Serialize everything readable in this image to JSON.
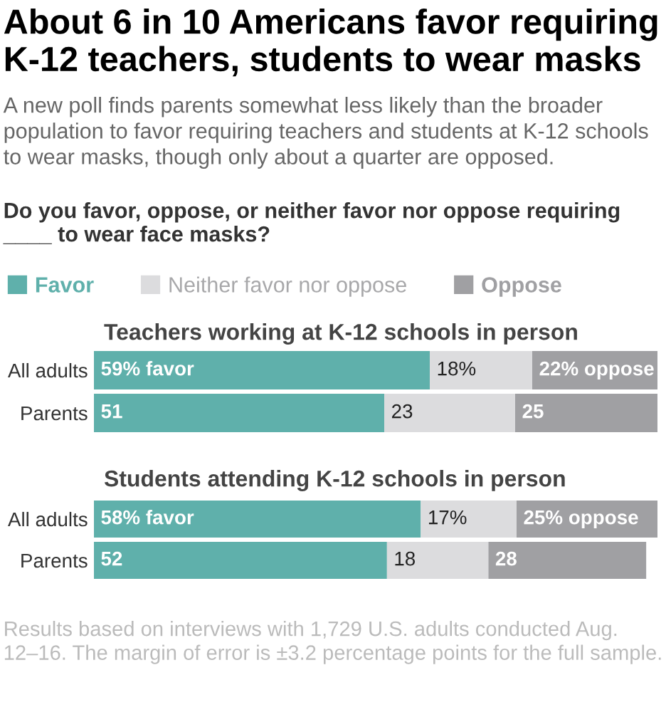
{
  "chart_data": [
    {
      "type": "bar",
      "orientation": "horizontal",
      "stacked": true,
      "title": "About 6 in 10 Americans favor requiring K-12 teachers, students to wear masks",
      "subtitle": "A new poll finds parents somewhat less likely than the broader population to favor requiring teachers and students at K-12 schools to wear masks, though only about a quarter are opposed.",
      "annotations": [
        "Do you favor, oppose, or neither favor nor oppose requiring ____ to wear face masks?",
        "Teachers working at K-12 schools in person"
      ],
      "categories": [
        "All adults",
        "Parents"
      ],
      "legend": "top left",
      "tick_labels": "y",
      "grid": false,
      "series": [
        {
          "name": "Favor",
          "color": "#5fb0ab",
          "values": [
            59,
            51
          ],
          "value_labels": [
            "59% favor",
            "51"
          ]
        },
        {
          "name": "Neither favor nor oppose",
          "color": "#dcdcde",
          "values": [
            18,
            23
          ],
          "value_labels": [
            "18%",
            "23"
          ]
        },
        {
          "name": "Oppose",
          "color": "#a0a0a3",
          "values": [
            22,
            25
          ],
          "value_labels": [
            "22% oppose",
            "25"
          ]
        }
      ]
    },
    {
      "type": "bar",
      "orientation": "horizontal",
      "stacked": true,
      "title": "Students attending K-12 schools in person",
      "annotations": [
        "Results based on interviews with 1,729 U.S. adults conducted Aug. 12–16. The margin of error is ±3.2 percentage points for the full sample."
      ],
      "categories": [
        "All adults",
        "Parents"
      ],
      "tick_labels": "y",
      "grid": false,
      "series": [
        {
          "color": "#5fb0ab",
          "values": [
            58,
            52
          ],
          "value_labels": [
            "58% favor",
            "52"
          ]
        },
        {
          "color": "#dcdcde",
          "values": [
            17,
            18
          ],
          "value_labels": [
            "17%",
            "18"
          ]
        },
        {
          "color": "#a0a0a3",
          "values": [
            25,
            28
          ],
          "value_labels": [
            "25% oppose",
            "28"
          ]
        }
      ]
    }
  ]
}
